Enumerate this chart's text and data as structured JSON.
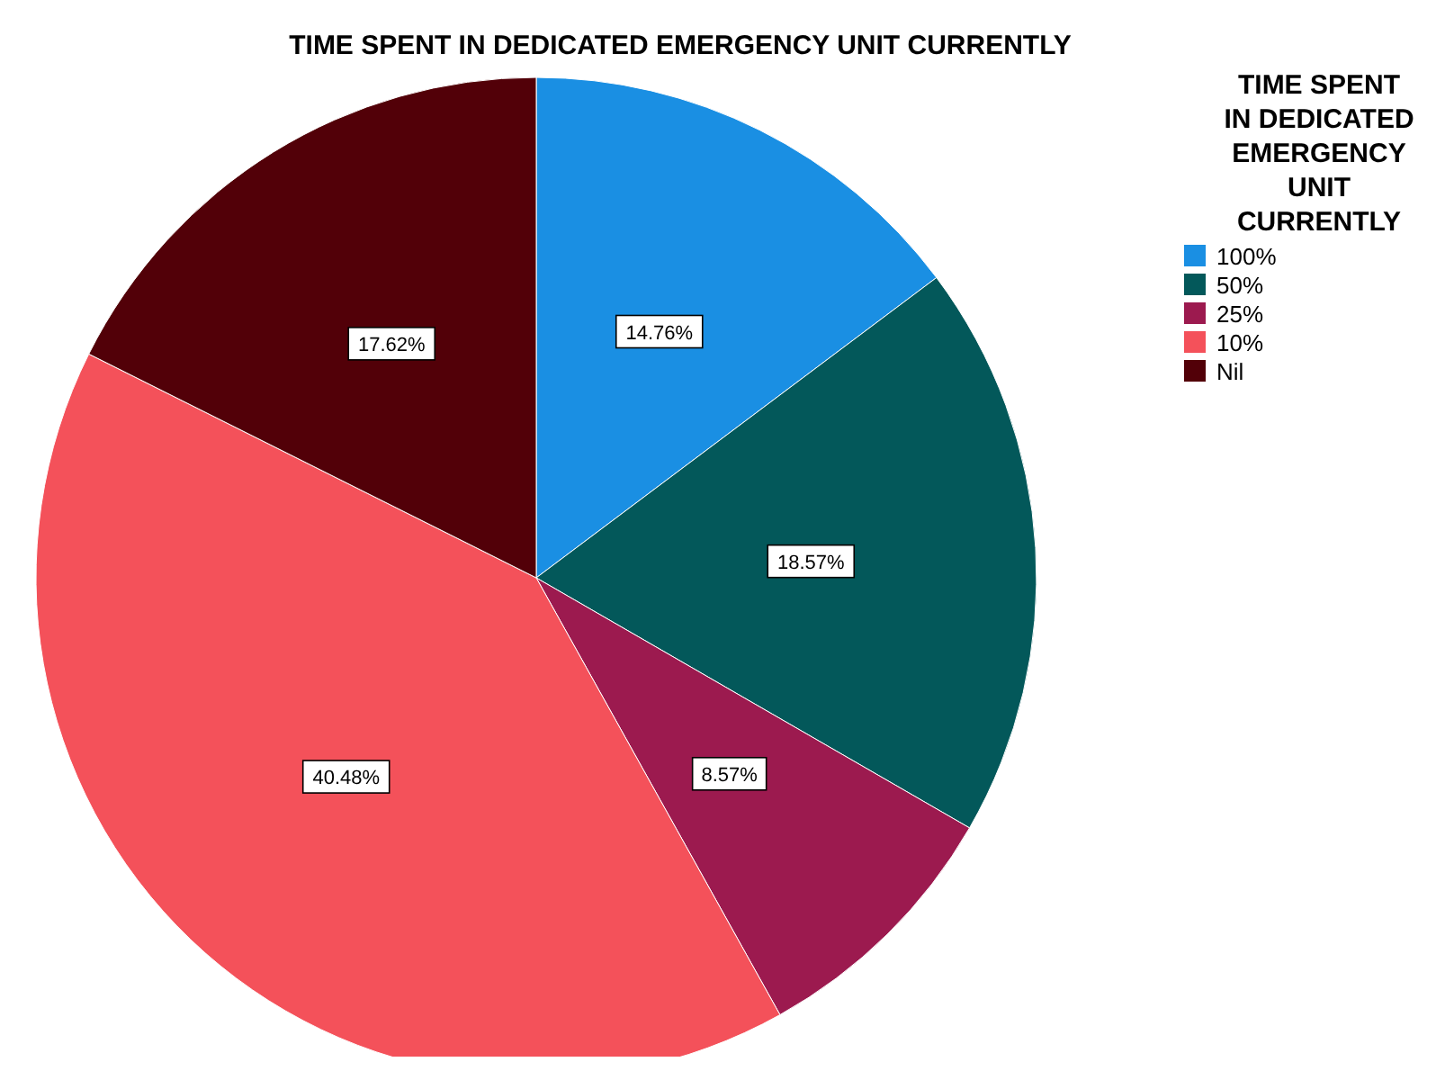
{
  "chart_data": {
    "type": "pie",
    "title": "TIME SPENT IN DEDICATED EMERGENCY UNIT CURRENTLY",
    "legend_title": "TIME SPENT IN DEDICATED EMERGENCY UNIT CURRENTLY",
    "categories": [
      "100%",
      "50%",
      "25%",
      "10%",
      "Nil"
    ],
    "values": [
      14.76,
      18.57,
      8.57,
      40.48,
      17.62
    ],
    "colors": [
      "#1a8fe3",
      "#03585a",
      "#9c1a4f",
      "#f4515a",
      "#520008"
    ],
    "value_labels": [
      "14.76%",
      "18.57%",
      "8.57%",
      "40.48%",
      "17.62%"
    ],
    "legend": "right"
  }
}
